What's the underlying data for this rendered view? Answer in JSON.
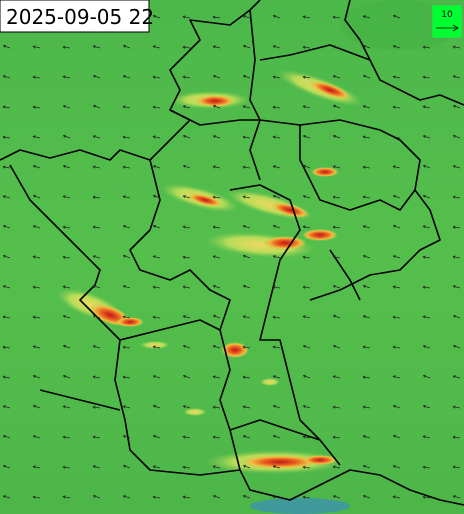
{
  "timestamp": "2025-09-05 22",
  "legend": {
    "label": "10"
  }
}
